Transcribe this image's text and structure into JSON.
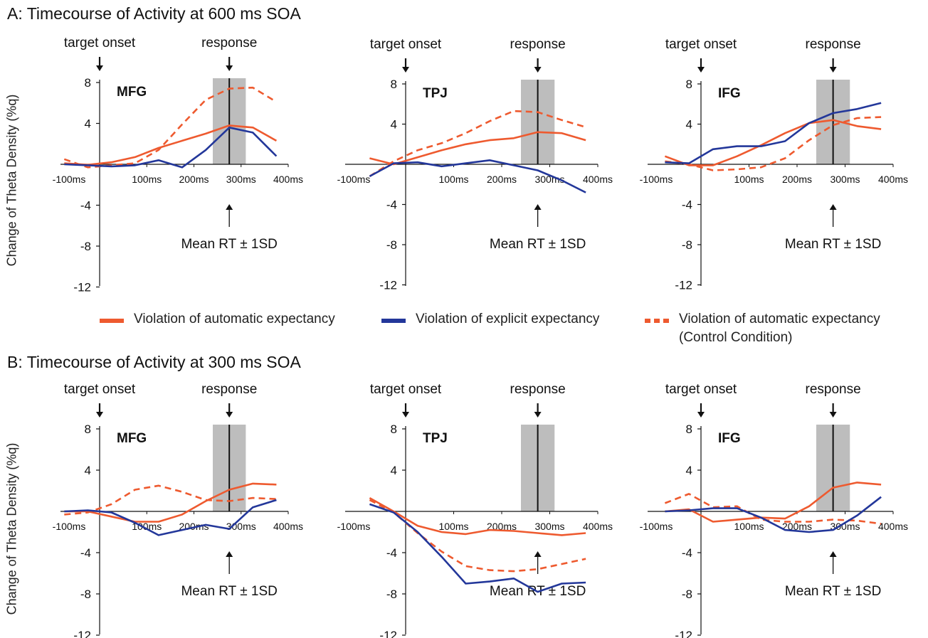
{
  "colors": {
    "auto": "#EE5A2F",
    "explicit": "#23379A",
    "control": "#EE5A2F",
    "rt_band": "#BDBDBD"
  },
  "sections": [
    {
      "title": "A: Timecourse of Activity at 600 ms SOA"
    },
    {
      "title": "B: Timecourse of Activity at 300 ms SOA"
    }
  ],
  "ylabel": "Change of Theta Density (%q)",
  "legend": [
    {
      "label": "Violation of automatic expectancy",
      "style": "solid",
      "color": "#EE5A2F"
    },
    {
      "label": "Violation of explicit expectancy",
      "style": "solid",
      "color": "#23379A"
    },
    {
      "label": "Violation of automatic expectancy",
      "label2": "(Control Condition)",
      "style": "dashed",
      "color": "#EE5A2F"
    }
  ],
  "chart_data": [
    {
      "type": "line",
      "panel": "A",
      "region": "MFG",
      "x": [
        -75,
        -25,
        25,
        75,
        125,
        175,
        225,
        275,
        325,
        375
      ],
      "xticks": [
        "-100ms",
        "100ms",
        "200ms",
        "300ms",
        "400ms"
      ],
      "yticks": [
        "8",
        "4",
        "-4",
        "-8",
        "-12"
      ],
      "ylim": [
        -12,
        8
      ],
      "xlim": [
        -100,
        400
      ],
      "rt": {
        "mean": 275,
        "sd": 35
      },
      "markers": {
        "target": "target onset",
        "response": "response",
        "rt": "Mean RT ± 1SD"
      },
      "series": [
        {
          "name": "Violation of automatic expectancy",
          "values": [
            0.1,
            -0.05,
            0.2,
            0.7,
            1.6,
            2.3,
            3.0,
            3.8,
            3.6,
            2.3
          ]
        },
        {
          "name": "Violation of explicit expectancy",
          "values": [
            0.0,
            -0.1,
            -0.2,
            -0.1,
            0.4,
            -0.3,
            1.4,
            3.6,
            3.1,
            0.8
          ]
        },
        {
          "name": "Violation of automatic expectancy (Control Condition)",
          "values": [
            0.5,
            -0.3,
            -0.1,
            0.1,
            1.4,
            3.9,
            6.3,
            7.4,
            7.5,
            6.1
          ]
        }
      ]
    },
    {
      "type": "line",
      "panel": "A",
      "region": "TPJ",
      "x": [
        -75,
        -25,
        25,
        75,
        125,
        175,
        225,
        275,
        325,
        375
      ],
      "xticks": [
        "-100ms",
        "100ms",
        "200ms",
        "300ms",
        "400ms"
      ],
      "yticks": [
        "8",
        "4",
        "-4",
        "-8",
        "-12"
      ],
      "ylim": [
        -12,
        8
      ],
      "xlim": [
        -100,
        400
      ],
      "rt": {
        "mean": 275,
        "sd": 35
      },
      "markers": {
        "target": "target onset",
        "response": "response",
        "rt": "Mean RT ± 1SD"
      },
      "series": [
        {
          "name": "Violation of automatic expectancy",
          "values": [
            0.6,
            0.0,
            0.7,
            1.4,
            2.0,
            2.4,
            2.6,
            3.2,
            3.1,
            2.4
          ]
        },
        {
          "name": "Violation of explicit expectancy",
          "values": [
            -1.2,
            0.1,
            0.2,
            -0.2,
            0.1,
            0.4,
            -0.1,
            -0.6,
            -1.6,
            -2.8
          ]
        },
        {
          "name": "Violation of automatic expectancy (Control Condition)",
          "values": [
            -1.2,
            0.3,
            1.4,
            2.1,
            3.1,
            4.3,
            5.3,
            5.2,
            4.4,
            3.7
          ]
        }
      ]
    },
    {
      "type": "line",
      "panel": "A",
      "region": "IFG",
      "x": [
        -75,
        -25,
        25,
        75,
        125,
        175,
        225,
        275,
        325,
        375
      ],
      "xticks": [
        "-100ms",
        "100ms",
        "200ms",
        "300ms",
        "400ms"
      ],
      "yticks": [
        "8",
        "4",
        "-4",
        "-8",
        "-12"
      ],
      "ylim": [
        -12,
        8
      ],
      "xlim": [
        -100,
        400
      ],
      "rt": {
        "mean": 275,
        "sd": 35
      },
      "markers": {
        "target": "target onset",
        "response": "response",
        "rt": "Mean RT ± 1SD"
      },
      "series": [
        {
          "name": "Violation of automatic expectancy",
          "values": [
            0.8,
            -0.1,
            -0.1,
            0.8,
            1.9,
            3.1,
            4.1,
            4.4,
            3.8,
            3.5
          ]
        },
        {
          "name": "Violation of explicit expectancy",
          "values": [
            0.2,
            0.1,
            1.5,
            1.8,
            1.8,
            2.3,
            4.1,
            5.1,
            5.5,
            6.1
          ]
        },
        {
          "name": "Violation of automatic expectancy (Control Condition)",
          "values": [
            0.3,
            0.0,
            -0.6,
            -0.5,
            -0.3,
            0.6,
            2.4,
            3.9,
            4.6,
            4.7
          ]
        }
      ]
    },
    {
      "type": "line",
      "panel": "B",
      "region": "MFG",
      "x": [
        -75,
        -25,
        25,
        75,
        125,
        175,
        225,
        275,
        325,
        375
      ],
      "xticks": [
        "-100ms",
        "100ms",
        "200ms",
        "300ms",
        "400ms"
      ],
      "yticks": [
        "8",
        "4",
        "-4",
        "-8",
        "-12"
      ],
      "ylim": [
        -12,
        8
      ],
      "xlim": [
        -100,
        400
      ],
      "rt": {
        "mean": 275,
        "sd": 35
      },
      "markers": {
        "target": "target onset",
        "response": "response",
        "rt": "Mean RT ± 1SD"
      },
      "series": [
        {
          "name": "Violation of automatic expectancy",
          "values": [
            0.0,
            0.0,
            -0.5,
            -1.0,
            -1.0,
            -0.3,
            1.0,
            2.1,
            2.7,
            2.6
          ]
        },
        {
          "name": "Violation of explicit expectancy",
          "values": [
            0.0,
            0.1,
            -0.1,
            -1.1,
            -2.3,
            -1.8,
            -1.3,
            -1.7,
            0.4,
            1.1
          ]
        },
        {
          "name": "Violation of automatic expectancy (Control Condition)",
          "values": [
            -0.3,
            -0.1,
            0.7,
            2.1,
            2.5,
            1.9,
            1.1,
            1.0,
            1.3,
            1.2
          ]
        }
      ]
    },
    {
      "type": "line",
      "panel": "B",
      "region": "TPJ",
      "x": [
        -75,
        -25,
        25,
        75,
        125,
        175,
        225,
        275,
        325,
        375
      ],
      "xticks": [
        "-100ms",
        "100ms",
        "200ms",
        "300ms",
        "400ms"
      ],
      "yticks": [
        "8",
        "4",
        "-4",
        "-8",
        "-12"
      ],
      "ylim": [
        -12,
        8
      ],
      "xlim": [
        -100,
        400
      ],
      "rt": {
        "mean": 275,
        "sd": 35
      },
      "markers": {
        "target": "target onset",
        "response": "response",
        "rt": "Mean RT ± 1SD"
      },
      "series": [
        {
          "name": "Violation of automatic expectancy",
          "values": [
            1.3,
            0.0,
            -1.4,
            -2.0,
            -2.2,
            -1.8,
            -1.9,
            -2.1,
            -2.3,
            -2.1
          ]
        },
        {
          "name": "Violation of explicit expectancy",
          "values": [
            0.7,
            -0.1,
            -2.0,
            -4.4,
            -7.0,
            -6.8,
            -6.5,
            -7.8,
            -7.0,
            -6.9
          ]
        },
        {
          "name": "Violation of automatic expectancy (Control Condition)",
          "values": [
            1.1,
            -0.1,
            -2.1,
            -3.9,
            -5.3,
            -5.7,
            -5.8,
            -5.6,
            -5.1,
            -4.6
          ]
        }
      ]
    },
    {
      "type": "line",
      "panel": "B",
      "region": "IFG",
      "x": [
        -75,
        -25,
        25,
        75,
        125,
        175,
        225,
        275,
        325,
        375
      ],
      "xticks": [
        "-100ms",
        "100ms",
        "200ms",
        "300ms",
        "400ms"
      ],
      "yticks": [
        "8",
        "4",
        "-4",
        "-8",
        "-12"
      ],
      "ylim": [
        -12,
        8
      ],
      "xlim": [
        -100,
        400
      ],
      "rt": {
        "mean": 275,
        "sd": 35
      },
      "markers": {
        "target": "target onset",
        "response": "response",
        "rt": "Mean RT ± 1SD"
      },
      "series": [
        {
          "name": "Violation of automatic expectancy",
          "values": [
            0.0,
            0.2,
            -1.0,
            -0.8,
            -0.6,
            -0.7,
            0.5,
            2.3,
            2.8,
            2.6
          ]
        },
        {
          "name": "Violation of explicit expectancy",
          "values": [
            0.0,
            0.1,
            0.3,
            0.3,
            -0.6,
            -1.8,
            -2.0,
            -1.8,
            -0.4,
            1.4
          ]
        },
        {
          "name": "Violation of automatic expectancy (Control Condition)",
          "values": [
            0.8,
            1.7,
            0.4,
            0.5,
            -0.8,
            -1.0,
            -1.0,
            -0.8,
            -0.9,
            -1.2
          ]
        }
      ]
    }
  ]
}
